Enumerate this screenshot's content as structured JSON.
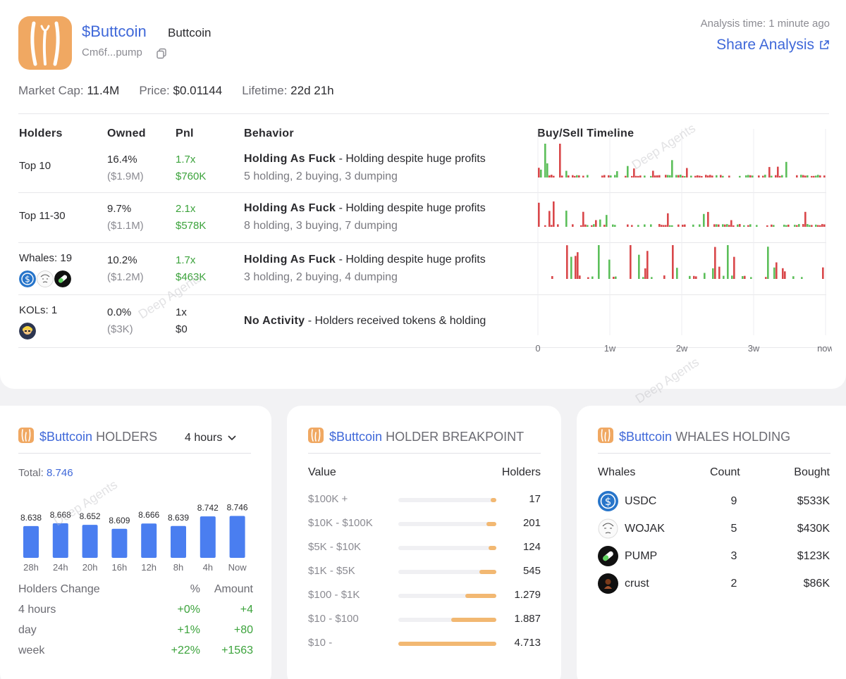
{
  "token": {
    "symbol": "$Buttcoin",
    "name": "Buttcoin",
    "address": "Cm6f...pump",
    "analysis_time": "Analysis time: 1 minute ago",
    "share_label": "Share Analysis",
    "market_cap_label": "Market Cap:",
    "market_cap": "11.4M",
    "price_label": "Price:",
    "price": "$0.01144",
    "lifetime_label": "Lifetime:",
    "lifetime": "22d 21h"
  },
  "watermark": "Deep Agents",
  "table": {
    "headers": {
      "holders": "Holders",
      "owned": "Owned",
      "pnl": "Pnl",
      "behavior": "Behavior",
      "timeline": "Buy/Sell Timeline"
    },
    "rows": [
      {
        "group": "Top 10",
        "owned_pct": "16.4%",
        "owned_usd": "($1.9M)",
        "pnl_x": "1.7x",
        "pnl_usd": "$760K",
        "behavior_title": "Holding As Fuck",
        "behavior_desc": " - Holding despite huge profits",
        "behavior_sub": "5 holding, 2 buying, 3 dumping"
      },
      {
        "group": "Top 11-30",
        "owned_pct": "9.7%",
        "owned_usd": "($1.1M)",
        "pnl_x": "2.1x",
        "pnl_usd": "$578K",
        "behavior_title": "Holding As Fuck",
        "behavior_desc": " - Holding despite huge profits",
        "behavior_sub": "8 holding, 3 buying, 7 dumping"
      },
      {
        "group": "Whales: 19",
        "owned_pct": "10.2%",
        "owned_usd": "($1.2M)",
        "pnl_x": "1.7x",
        "pnl_usd": "$463K",
        "behavior_title": "Holding As Fuck",
        "behavior_desc": " - Holding despite huge profits",
        "behavior_sub": "3 holding, 2 buying, 4 dumping"
      },
      {
        "group": "KOLs: 1",
        "owned_pct": "0.0%",
        "owned_usd": "($3K)",
        "pnl_x": "1x",
        "pnl_usd": "$0",
        "behavior_title": "No Activity",
        "behavior_desc": " - Holders received tokens & holding",
        "behavior_sub": ""
      }
    ],
    "timeline_axis": [
      "0",
      "1w",
      "2w",
      "3w",
      "now"
    ],
    "colors": {
      "buy": "#5cbf5a",
      "sell": "#d9474a"
    }
  },
  "holders_panel": {
    "title_suffix": "HOLDERS",
    "timeframe": "4 hours",
    "total_label": "Total:",
    "total": "8.746",
    "bars": [
      {
        "label": "28h",
        "value": 8.638,
        "text": "8.638"
      },
      {
        "label": "24h",
        "value": 8.668,
        "text": "8.668"
      },
      {
        "label": "20h",
        "value": 8.652,
        "text": "8.652"
      },
      {
        "label": "16h",
        "value": 8.609,
        "text": "8.609"
      },
      {
        "label": "12h",
        "value": 8.666,
        "text": "8.666"
      },
      {
        "label": "8h",
        "value": 8.639,
        "text": "8.639"
      },
      {
        "label": "4h",
        "value": 8.742,
        "text": "8.742"
      },
      {
        "label": "Now",
        "value": 8.746,
        "text": "8.746"
      }
    ],
    "change_headers": {
      "label": "Holders Change",
      "pct": "%",
      "amount": "Amount"
    },
    "changes": [
      {
        "period": "4 hours",
        "pct": "+0%",
        "amount": "+4"
      },
      {
        "period": "day",
        "pct": "+1%",
        "amount": "+80"
      },
      {
        "period": "week",
        "pct": "+22%",
        "amount": "+1563"
      }
    ]
  },
  "breakpoint_panel": {
    "title_suffix": "HOLDER BREAKPOINT",
    "value_header": "Value",
    "holders_header": "Holders",
    "rows": [
      {
        "range": "$100K +",
        "holders": "17",
        "fill": 0.05
      },
      {
        "range": "$10K - $100K",
        "holders": "201",
        "fill": 0.1
      },
      {
        "range": "$5K - $10K",
        "holders": "124",
        "fill": 0.08
      },
      {
        "range": "$1K - $5K",
        "holders": "545",
        "fill": 0.17
      },
      {
        "range": "$100 - $1K",
        "holders": "1.279",
        "fill": 0.32
      },
      {
        "range": "$10 - $100",
        "holders": "1.887",
        "fill": 0.46
      },
      {
        "range": "$10 -",
        "holders": "4.713",
        "fill": 1.0
      }
    ]
  },
  "whales_panel": {
    "title_suffix": "WHALES HOLDING",
    "headers": {
      "whales": "Whales",
      "count": "Count",
      "bought": "Bought"
    },
    "rows": [
      {
        "name": "USDC",
        "icon": "usdc-icon",
        "count": "9",
        "bought": "$533K"
      },
      {
        "name": "WOJAK",
        "icon": "wojak-icon",
        "count": "5",
        "bought": "$430K"
      },
      {
        "name": "PUMP",
        "icon": "pump-pill-icon",
        "count": "3",
        "bought": "$123K"
      },
      {
        "name": "crust",
        "icon": "crust-icon",
        "count": "2",
        "bought": "$86K"
      }
    ]
  }
}
